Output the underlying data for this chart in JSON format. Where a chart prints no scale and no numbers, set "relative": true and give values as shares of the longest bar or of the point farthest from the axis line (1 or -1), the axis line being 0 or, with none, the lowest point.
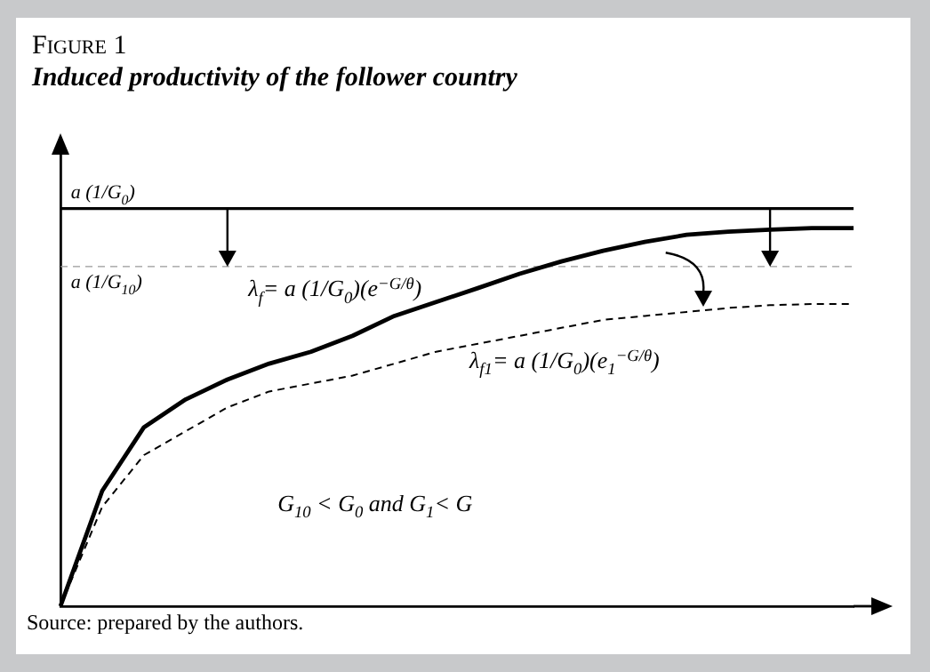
{
  "chart_data": {
    "type": "line",
    "title": "Figure 1",
    "subtitle": "Induced productivity of the follower country",
    "relative": true,
    "grid": false,
    "marker": "none",
    "categories": [
      null,
      null,
      null,
      null,
      null,
      null,
      null,
      null,
      null,
      null,
      null,
      null,
      null,
      null,
      null,
      null,
      null,
      null,
      null,
      null
    ],
    "series": [
      {
        "color": "#000000",
        "line_style": "solid",
        "values": [
          0,
          0.29,
          0.45,
          0.52,
          0.57,
          0.61,
          0.64,
          0.68,
          0.73,
          0.765,
          0.8,
          0.836,
          0.867,
          0.894,
          0.916,
          0.934,
          0.942,
          0.947,
          0.951,
          0.951
        ]
      },
      {
        "color": "#000000",
        "line_style": "dashed",
        "values": [
          0,
          0.25,
          0.38,
          0.44,
          0.5,
          0.54,
          0.56,
          0.58,
          0.61,
          0.64,
          0.66,
          0.68,
          0.7,
          0.72,
          0.73,
          0.74,
          0.75,
          0.757,
          0.76,
          0.76
        ]
      },
      {
        "color": "#000000",
        "line_style": "solid",
        "values": [
          1,
          1,
          1,
          1,
          1,
          1,
          1,
          1,
          1,
          1,
          1,
          1,
          1,
          1,
          1,
          1,
          1,
          1,
          1,
          1
        ]
      },
      {
        "color": "#999999",
        "line_style": "dashed",
        "values": [
          0.854,
          0.854,
          0.854,
          0.854,
          0.854,
          0.854,
          0.854,
          0.854,
          0.854,
          0.854,
          0.854,
          0.854,
          0.854,
          0.854,
          0.854,
          0.854,
          0.854,
          0.854,
          0.854,
          0.854
        ]
      }
    ],
    "annotations": [
      "a (1/G$_{0}$)",
      "a (1/G$_{10}$)",
      "λ$_{f}$= a (1/G$_{0}$)(e$^{−G/θ}$)",
      "λ$_{f1}$= a (1/G$_{0}$)(e$_{1}$$^{−G/θ}$)",
      "G$_{10}$ < G$_{0}$ and G$_{1}$< G",
      "Source: prepared by the authors."
    ]
  }
}
